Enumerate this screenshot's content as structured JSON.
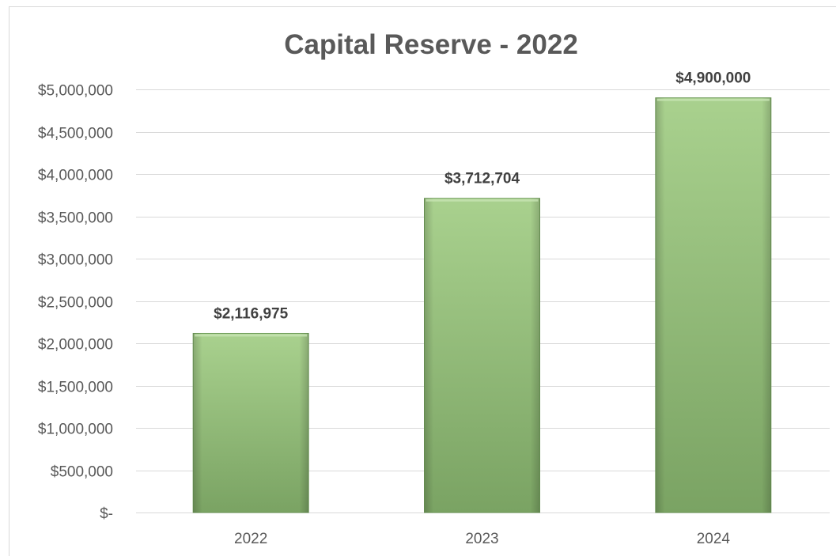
{
  "chart_data": {
    "type": "bar",
    "title": "Capital Reserve - 2022",
    "categories": [
      "2022",
      "2023",
      "2024"
    ],
    "values": [
      2116975,
      3712704,
      4900000
    ],
    "data_labels": [
      "$2,116,975",
      "$3,712,704",
      "$4,900,000"
    ],
    "xlabel": "",
    "ylabel": "",
    "ylim": [
      0,
      5000000
    ],
    "y_ticks": [
      0,
      500000,
      1000000,
      1500000,
      2000000,
      2500000,
      3000000,
      3500000,
      4000000,
      4500000,
      5000000
    ],
    "y_tick_labels": [
      "$-",
      "$500,000",
      "$1,000,000",
      "$1,500,000",
      "$2,000,000",
      "$2,500,000",
      "$3,000,000",
      "$3,500,000",
      "$4,000,000",
      "$4,500,000",
      "$5,000,000"
    ],
    "grid": true,
    "legend": "none",
    "colors": {
      "bar_top": "#a9d18e",
      "bar_bottom": "#7aa363",
      "bar_edge": "#6e9a58",
      "grid": "#d9d9d9",
      "text": "#595959",
      "label": "#404040"
    }
  }
}
